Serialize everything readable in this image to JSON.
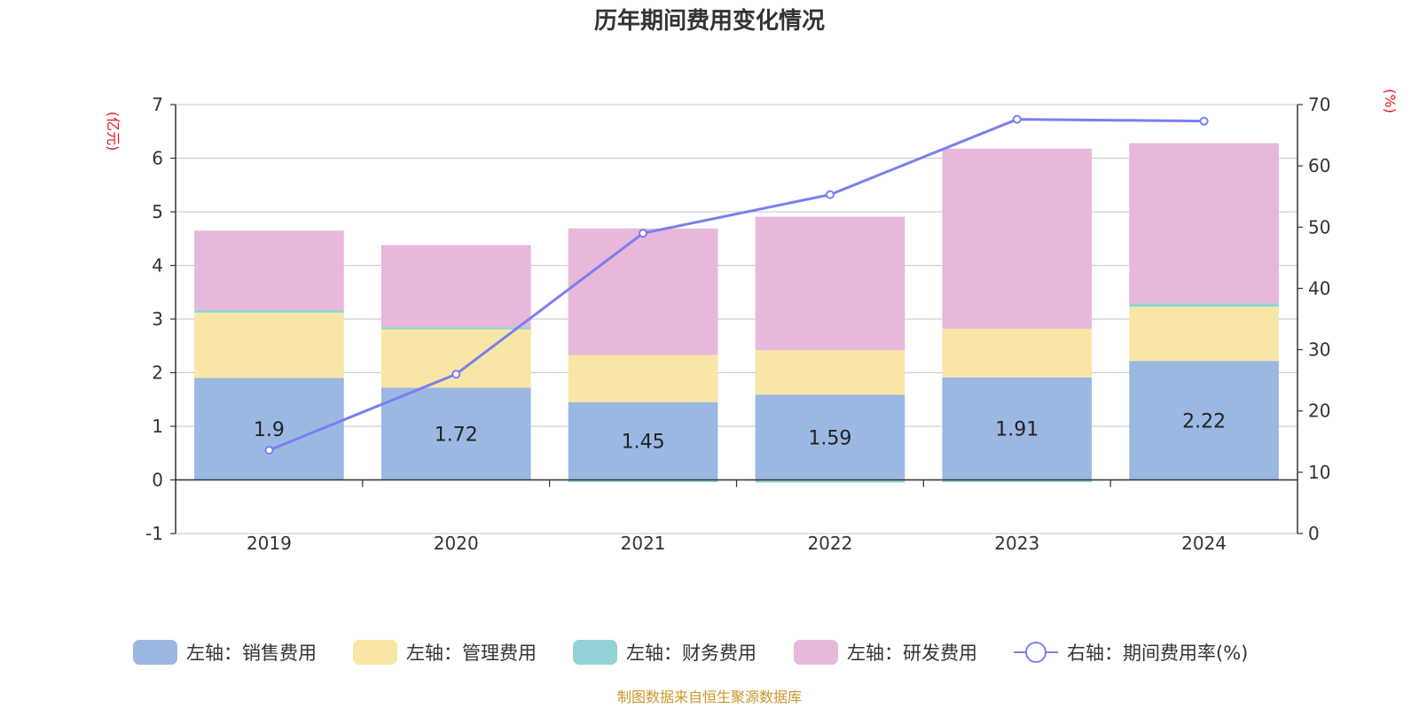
{
  "chart_data": {
    "type": "bar",
    "title": "历年期间费用变化情况",
    "categories": [
      "2019",
      "2020",
      "2021",
      "2022",
      "2023",
      "2024"
    ],
    "series": [
      {
        "name": "左轴：销售费用",
        "axis": "left",
        "kind": "bar",
        "color": "#9bb8e2",
        "values": [
          1.9,
          1.72,
          1.45,
          1.59,
          1.91,
          2.22
        ],
        "labels": [
          "1.9",
          "1.72",
          "1.45",
          "1.59",
          "1.91",
          "2.22"
        ]
      },
      {
        "name": "左轴：管理费用",
        "axis": "left",
        "kind": "bar",
        "color": "#f7e6a5",
        "values": [
          1.22,
          1.12,
          0.88,
          0.83,
          0.91,
          1.01
        ]
      },
      {
        "name": "左轴：财务费用",
        "axis": "left",
        "kind": "bar",
        "color": "#93d3d5",
        "values": [
          0.05,
          0.01,
          -0.03,
          -0.05,
          -0.02,
          0.06
        ]
      },
      {
        "name": "左轴：研发费用",
        "axis": "left",
        "kind": "bar",
        "color": "#e7b8d9",
        "values": [
          1.48,
          1.53,
          2.36,
          2.49,
          3.36,
          2.99
        ]
      },
      {
        "name": "右轴：期间费用率(%)",
        "axis": "right",
        "kind": "line",
        "color": "#7b7ef0",
        "values": [
          13.6,
          26.0,
          49.0,
          55.3,
          67.6,
          67.3
        ]
      }
    ],
    "left_axis": {
      "label": "(亿元)",
      "range": [
        -1,
        7
      ],
      "ticks": [
        -1,
        0,
        1,
        2,
        3,
        4,
        5,
        6,
        7
      ]
    },
    "right_axis": {
      "label": "(%)",
      "range": [
        0,
        70
      ],
      "ticks": [
        0,
        10,
        20,
        30,
        40,
        50,
        60,
        70
      ]
    },
    "grid": true,
    "legend_position": "bottom"
  },
  "source_note": "制图数据来自恒生聚源数据库"
}
